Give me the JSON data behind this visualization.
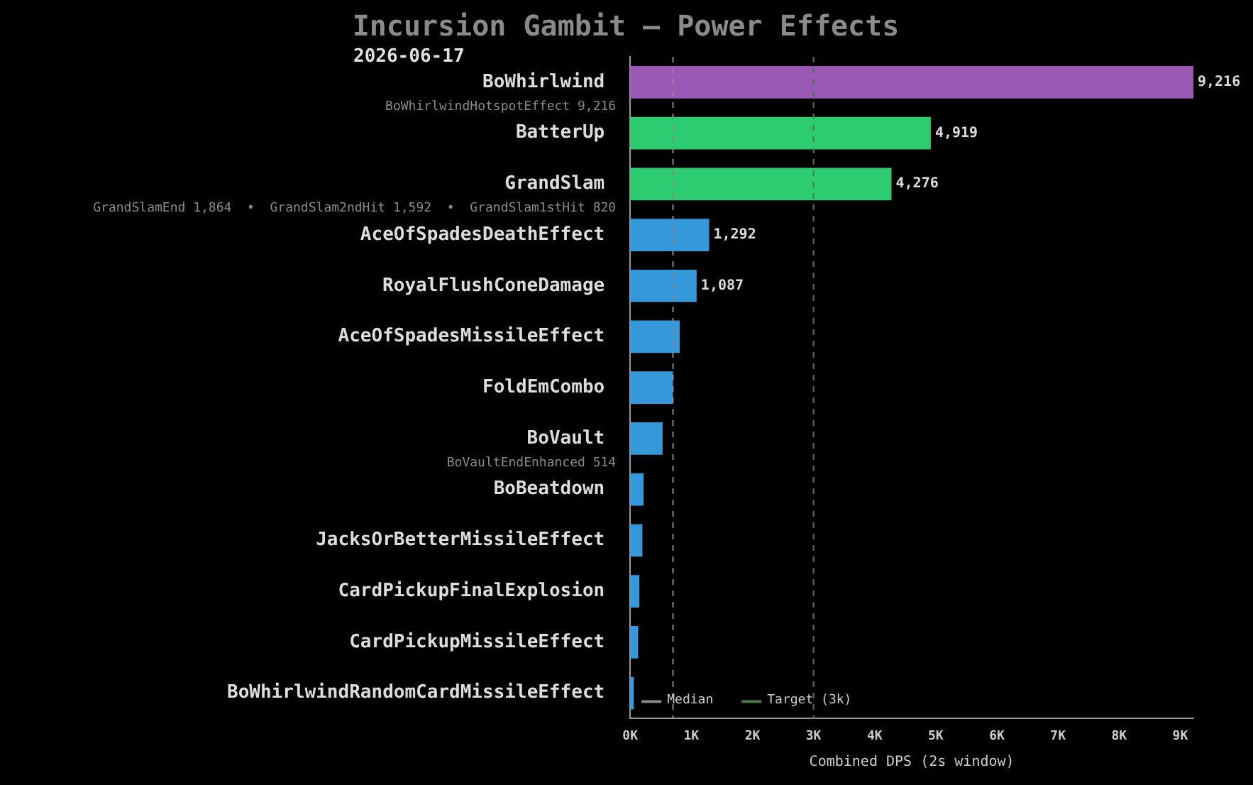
{
  "chart_data": {
    "type": "bar",
    "orientation": "horizontal",
    "title": "Incursion Gambit — Power Effects",
    "subtitle": "2026-06-17",
    "xlabel": "Combined DPS (2s window)",
    "categories": [
      "BoWhirlwind",
      "BatterUp",
      "GrandSlam",
      "AceOfSpadesDeathEffect",
      "RoyalFlushConeDamage",
      "AceOfSpadesMissileEffect",
      "FoldEmCombo",
      "BoVault",
      "BoBeatdown",
      "JacksOrBetterMissileEffect",
      "CardPickupFinalExplosion",
      "CardPickupMissileEffect",
      "BoWhirlwindRandomCardMissileEffect"
    ],
    "values": [
      9216,
      4919,
      4276,
      1292,
      1087,
      810,
      700,
      530,
      220,
      200,
      150,
      130,
      60
    ],
    "colors": [
      "#9b59b6",
      "#2ecc71",
      "#2ecc71",
      "#3498db",
      "#3498db",
      "#3498db",
      "#3498db",
      "#3498db",
      "#3498db",
      "#3498db",
      "#3498db",
      "#3498db",
      "#3498db"
    ],
    "value_labels": [
      "9,216",
      "4,919",
      "4,276",
      "1,292",
      "1,087",
      null,
      null,
      null,
      null,
      null,
      null,
      null,
      null
    ],
    "xlim": [
      0,
      9216
    ],
    "xticks": [
      {
        "value": 0,
        "label": "0K"
      },
      {
        "value": 1000,
        "label": "1K"
      },
      {
        "value": 2000,
        "label": "2K"
      },
      {
        "value": 3000,
        "label": "3K"
      },
      {
        "value": 4000,
        "label": "4K"
      },
      {
        "value": 5000,
        "label": "5K"
      },
      {
        "value": 6000,
        "label": "6K"
      },
      {
        "value": 7000,
        "label": "7K"
      },
      {
        "value": 8000,
        "label": "8K"
      },
      {
        "value": 9000,
        "label": "9K"
      }
    ],
    "ref_lines": [
      {
        "axis": "x",
        "value": 700,
        "label": "Median",
        "color": "#888888",
        "line_style": "dashed"
      },
      {
        "axis": "x",
        "value": 3000,
        "label": "Target (3k)",
        "color": "#4a7a4a",
        "line_style": "dashed"
      }
    ],
    "annotations": [
      "BoWhirlwindHotspotEffect 9,216",
      "GrandSlamEnd 1,864  •  GrandSlam2ndHit 1,592  •  GrandSlam1stHit 820",
      "BoVaultEndEnhanced 514"
    ],
    "grid": false,
    "legend": "bottom left"
  }
}
